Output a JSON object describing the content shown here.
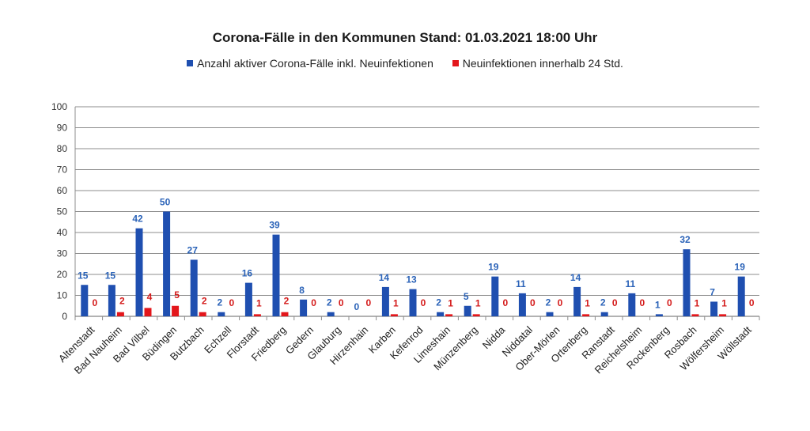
{
  "chart_data": {
    "type": "bar",
    "title": "Corona-Fälle in den Kommunen Stand: 01.03.2021 18:00 Uhr",
    "xlabel": "",
    "ylabel": "",
    "ylim": [
      0,
      100
    ],
    "yticks": [
      0,
      10,
      20,
      30,
      40,
      50,
      60,
      70,
      80,
      90,
      100
    ],
    "grid": true,
    "legend_position": "top",
    "categories": [
      "Altenstadt",
      "Bad Nauheim",
      "Bad Vilbel",
      "Büdingen",
      "Butzbach",
      "Echzell",
      "Florstadt",
      "Friedberg",
      "Gedern",
      "Glauburg",
      "Hirzenhain",
      "Karben",
      "Kefenrod",
      "Limeshain",
      "Münzenberg",
      "Nidda",
      "Niddatal",
      "Ober-Mörlen",
      "Ortenberg",
      "Ranstadt",
      "Reichelsheim",
      "Rockenberg",
      "Rosbach",
      "Wölfersheim",
      "Wöllstadt"
    ],
    "series": [
      {
        "name": "Anzahl aktiver Corona-Fälle inkl. Neuinfektionen",
        "color": "#1f4fb0",
        "label_color": "#2b63b8",
        "values": [
          15,
          15,
          42,
          50,
          27,
          2,
          16,
          39,
          8,
          2,
          0,
          14,
          13,
          2,
          5,
          19,
          11,
          2,
          14,
          2,
          11,
          1,
          32,
          7,
          19
        ]
      },
      {
        "name": "Neuinfektionen innerhalb 24 Std.",
        "color": "#e3161b",
        "label_color": "#d41a1a",
        "values": [
          0,
          2,
          4,
          5,
          2,
          0,
          1,
          2,
          0,
          0,
          0,
          1,
          0,
          1,
          1,
          0,
          0,
          0,
          1,
          0,
          0,
          0,
          1,
          1,
          0
        ]
      }
    ]
  }
}
